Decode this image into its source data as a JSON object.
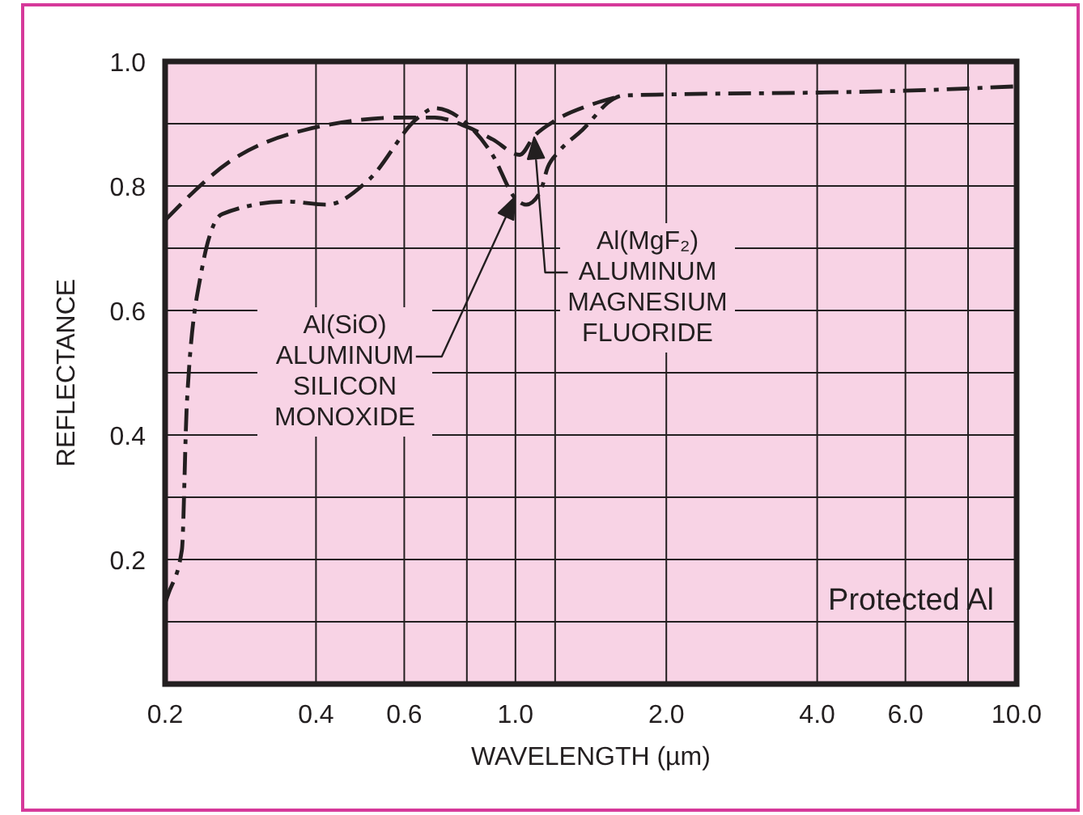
{
  "chart_data": {
    "type": "line",
    "xlabel": "WAVELENGTH (µm)",
    "ylabel": "REFLECTANCE",
    "log": "x",
    "xlim": [
      0.2,
      10
    ],
    "ylim": [
      0,
      1
    ],
    "xticks": [
      0.2,
      0.4,
      0.6,
      {
        "value": 0.8,
        "label": null
      },
      {
        "value": 1,
        "label": "1.0"
      },
      {
        "value": 1.2,
        "label": null
      },
      {
        "value": 2,
        "label": "2.0"
      },
      {
        "value": 4,
        "label": "4.0"
      },
      {
        "value": 6,
        "label": "6.0"
      },
      {
        "value": 8,
        "label": null
      },
      {
        "value": 10,
        "label": "10.0"
      }
    ],
    "yticks": [
      {
        "value": 0.1,
        "label": null
      },
      0.2,
      {
        "value": 0.3,
        "label": null
      },
      0.4,
      {
        "value": 0.5,
        "label": null
      },
      0.6,
      {
        "value": 0.7,
        "label": null
      },
      0.8,
      {
        "value": 0.9,
        "label": null
      },
      {
        "value": 1,
        "label": "1.0"
      }
    ],
    "grid": true,
    "marker": "none",
    "series": [
      {
        "color": "#231f20",
        "line_style": "dashed",
        "x": [
          0.2,
          0.27,
          0.38,
          0.6,
          0.69,
          0.8,
          0.9,
          1.02,
          1.09,
          1.2,
          1.41,
          1.63
        ],
        "values": [
          0.745,
          0.84,
          0.89,
          0.91,
          0.91,
          0.895,
          0.875,
          0.85,
          0.88,
          0.905,
          0.93,
          0.945
        ]
      },
      {
        "color": "#231f20",
        "line_style": "dashdot",
        "x": [
          0.2,
          0.203,
          0.216,
          0.221,
          0.236,
          0.26,
          0.35,
          0.42,
          0.51,
          0.64,
          0.69,
          0.8,
          0.9,
          1.0,
          1.05,
          1.12,
          1.16,
          1.22,
          1.36,
          1.57,
          1.63,
          2,
          4,
          6,
          10
        ],
        "values": [
          0.13,
          0.145,
          0.215,
          0.45,
          0.66,
          0.755,
          0.775,
          0.77,
          0.81,
          0.91,
          0.925,
          0.9,
          0.85,
          0.78,
          0.77,
          0.79,
          0.83,
          0.855,
          0.89,
          0.94,
          0.945,
          0.947,
          0.95,
          0.953,
          0.96
        ]
      }
    ],
    "annotations": [
      "Al(SiO)\nALUMINUM\nSILICON\nMONOXIDE",
      "Al(MgF₂)\nALUMINUM\nMAGNESIUM\nFLUORIDE",
      "Protected Al"
    ]
  }
}
